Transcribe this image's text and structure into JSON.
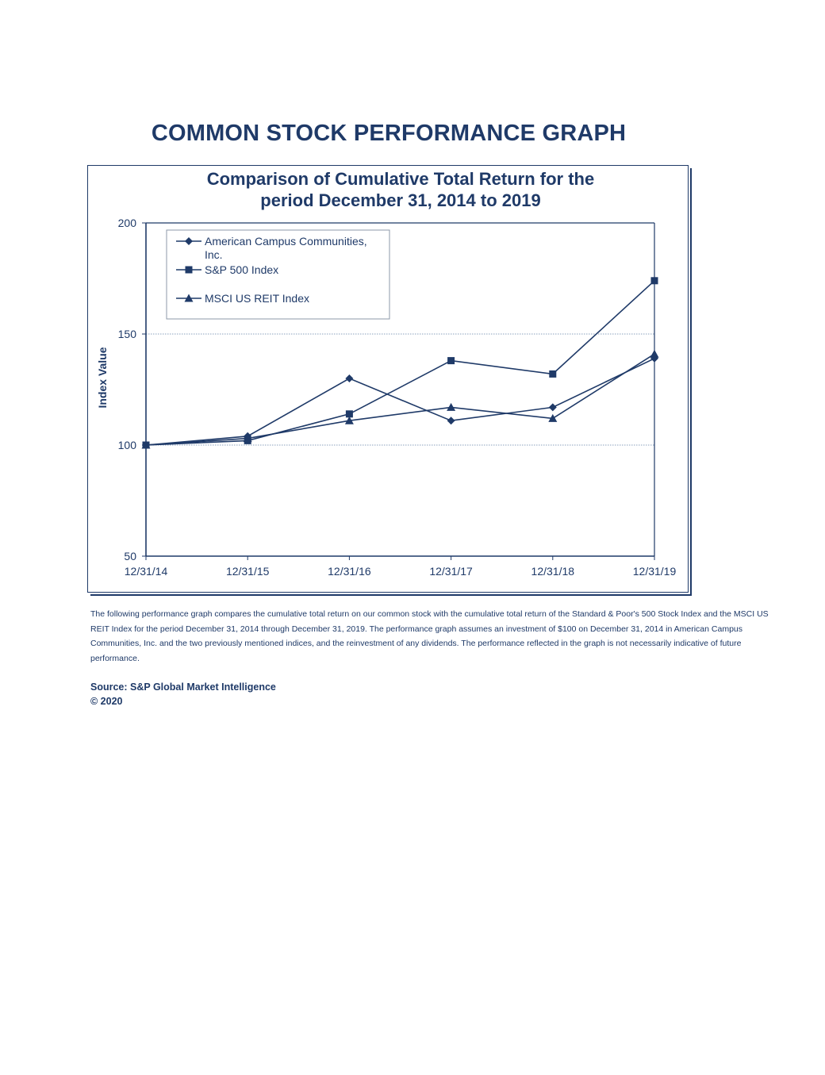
{
  "page": {
    "title": "COMMON STOCK PERFORMANCE GRAPH",
    "description": "The following performance graph compares the cumulative total return on our common stock with the cumulative total return of the Standard & Poor's 500 Stock Index and the MSCI US REIT Index for the period December 31, 2014 through December 31, 2019. The performance graph assumes an investment of $100 on December 31, 2014 in American Campus Communities, Inc. and the two previously mentioned indices, and the reinvestment of any dividends. The performance reflected in the graph is not necessarily indicative of future performance.",
    "source": "Source:  S&P Global Market Intelligence",
    "copyright": "© 2020"
  },
  "chart_data": {
    "type": "line",
    "title_line1": "Comparison of Cumulative Total Return for the",
    "title_line2": "period December 31, 2014 to 2019",
    "xlabel": "",
    "ylabel": "Index Value",
    "categories": [
      "12/31/14",
      "12/31/15",
      "12/31/16",
      "12/31/17",
      "12/31/18",
      "12/31/19"
    ],
    "ylim": [
      50,
      200
    ],
    "yticks": [
      50,
      100,
      150,
      200
    ],
    "grid": "horizontal dotted at 100 and 150",
    "legend_position": "top-left",
    "color": "#1f3a68",
    "series": [
      {
        "name": "American Campus Communities, Inc.",
        "marker": "diamond",
        "values": [
          100,
          104,
          130,
          111,
          117,
          139
        ]
      },
      {
        "name": "S&P 500 Index",
        "marker": "square",
        "values": [
          100,
          102,
          114,
          138,
          132,
          174
        ]
      },
      {
        "name": "MSCI US REIT Index",
        "marker": "triangle",
        "values": [
          100,
          103,
          111,
          117,
          112,
          141
        ]
      }
    ]
  }
}
